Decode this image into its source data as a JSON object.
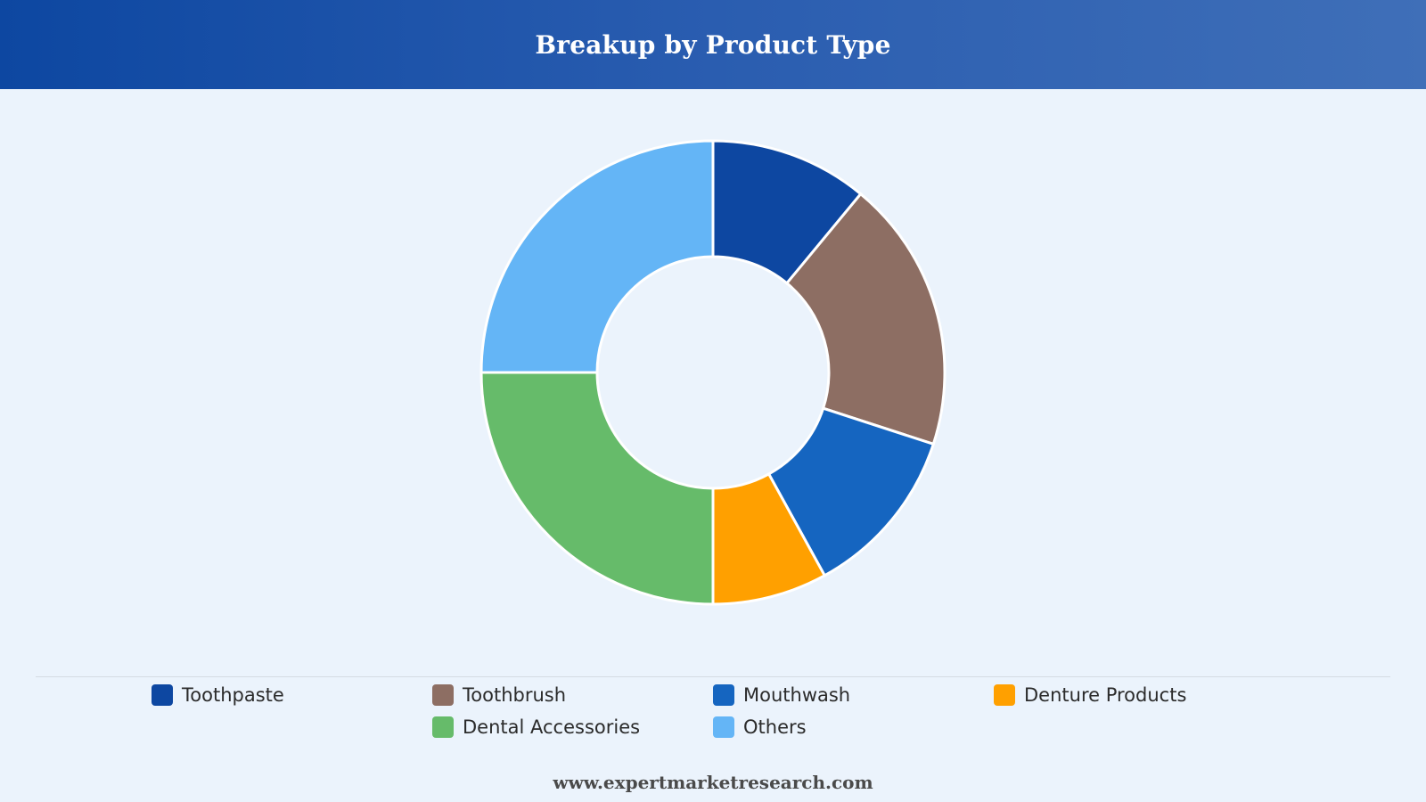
{
  "header": {
    "title": "Breakup by Product Type"
  },
  "chart_data": {
    "type": "pie",
    "variant": "donut",
    "title": "Breakup by Product Type",
    "categories": [
      "Toothpaste",
      "Toothbrush",
      "Mouthwash",
      "Denture Products",
      "Dental Accessories",
      "Others"
    ],
    "values": [
      11,
      19,
      12,
      8,
      25,
      25
    ],
    "colors": [
      "#0d47a1",
      "#8d6e63",
      "#1565c0",
      "#ffa000",
      "#66bb6a",
      "#64b5f6"
    ],
    "legend_position": "bottom"
  },
  "legend": {
    "items": [
      {
        "label": "Toothpaste",
        "color": "#0d47a1"
      },
      {
        "label": "Toothbrush",
        "color": "#8d6e63"
      },
      {
        "label": "Mouthwash",
        "color": "#1565c0"
      },
      {
        "label": "Denture Products",
        "color": "#ffa000"
      },
      {
        "label": "Dental Accessories",
        "color": "#66bb6a"
      },
      {
        "label": "Others",
        "color": "#64b5f6"
      }
    ]
  },
  "footer": {
    "source": "www.expertmarketresearch.com"
  }
}
